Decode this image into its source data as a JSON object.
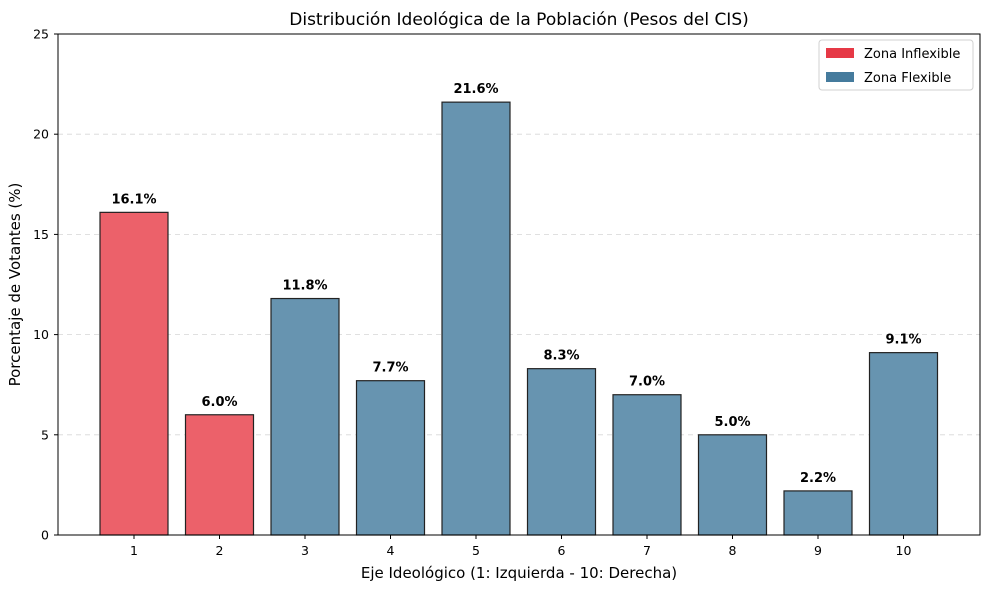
{
  "chart_data": {
    "type": "bar",
    "title": "Distribución Ideológica de la Población (Pesos del CIS)",
    "xlabel": "Eje Ideológico (1: Izquierda - 10: Derecha)",
    "ylabel": "Porcentaje de Votantes (%)",
    "categories": [
      "1",
      "2",
      "3",
      "4",
      "5",
      "6",
      "7",
      "8",
      "9",
      "10"
    ],
    "values": [
      16.1,
      6.0,
      11.8,
      7.7,
      21.6,
      8.3,
      7.0,
      5.0,
      2.2,
      9.1
    ],
    "data_labels": [
      "16.1%",
      "6.0%",
      "11.8%",
      "7.7%",
      "21.6%",
      "8.3%",
      "7.0%",
      "5.0%",
      "2.2%",
      "9.1%"
    ],
    "groups": [
      "inflexible",
      "inflexible",
      "flexible",
      "flexible",
      "flexible",
      "flexible",
      "flexible",
      "flexible",
      "flexible",
      "flexible"
    ],
    "ylim": [
      0,
      25
    ],
    "yticks": [
      "0",
      "5",
      "10",
      "15",
      "20",
      "25"
    ],
    "ytick_values": [
      0,
      5,
      10,
      15,
      20,
      25
    ],
    "grid": "y-dashed",
    "legend": {
      "placement": "top-right",
      "entries": [
        {
          "key": "inflexible",
          "label": "Zona Inflexible",
          "color": "#e63946"
        },
        {
          "key": "flexible",
          "label": "Zona Flexible",
          "color": "#457b9d"
        }
      ]
    },
    "colors": {
      "inflexible_fill": "#ec616a",
      "flexible_fill": "#6794b0"
    }
  }
}
